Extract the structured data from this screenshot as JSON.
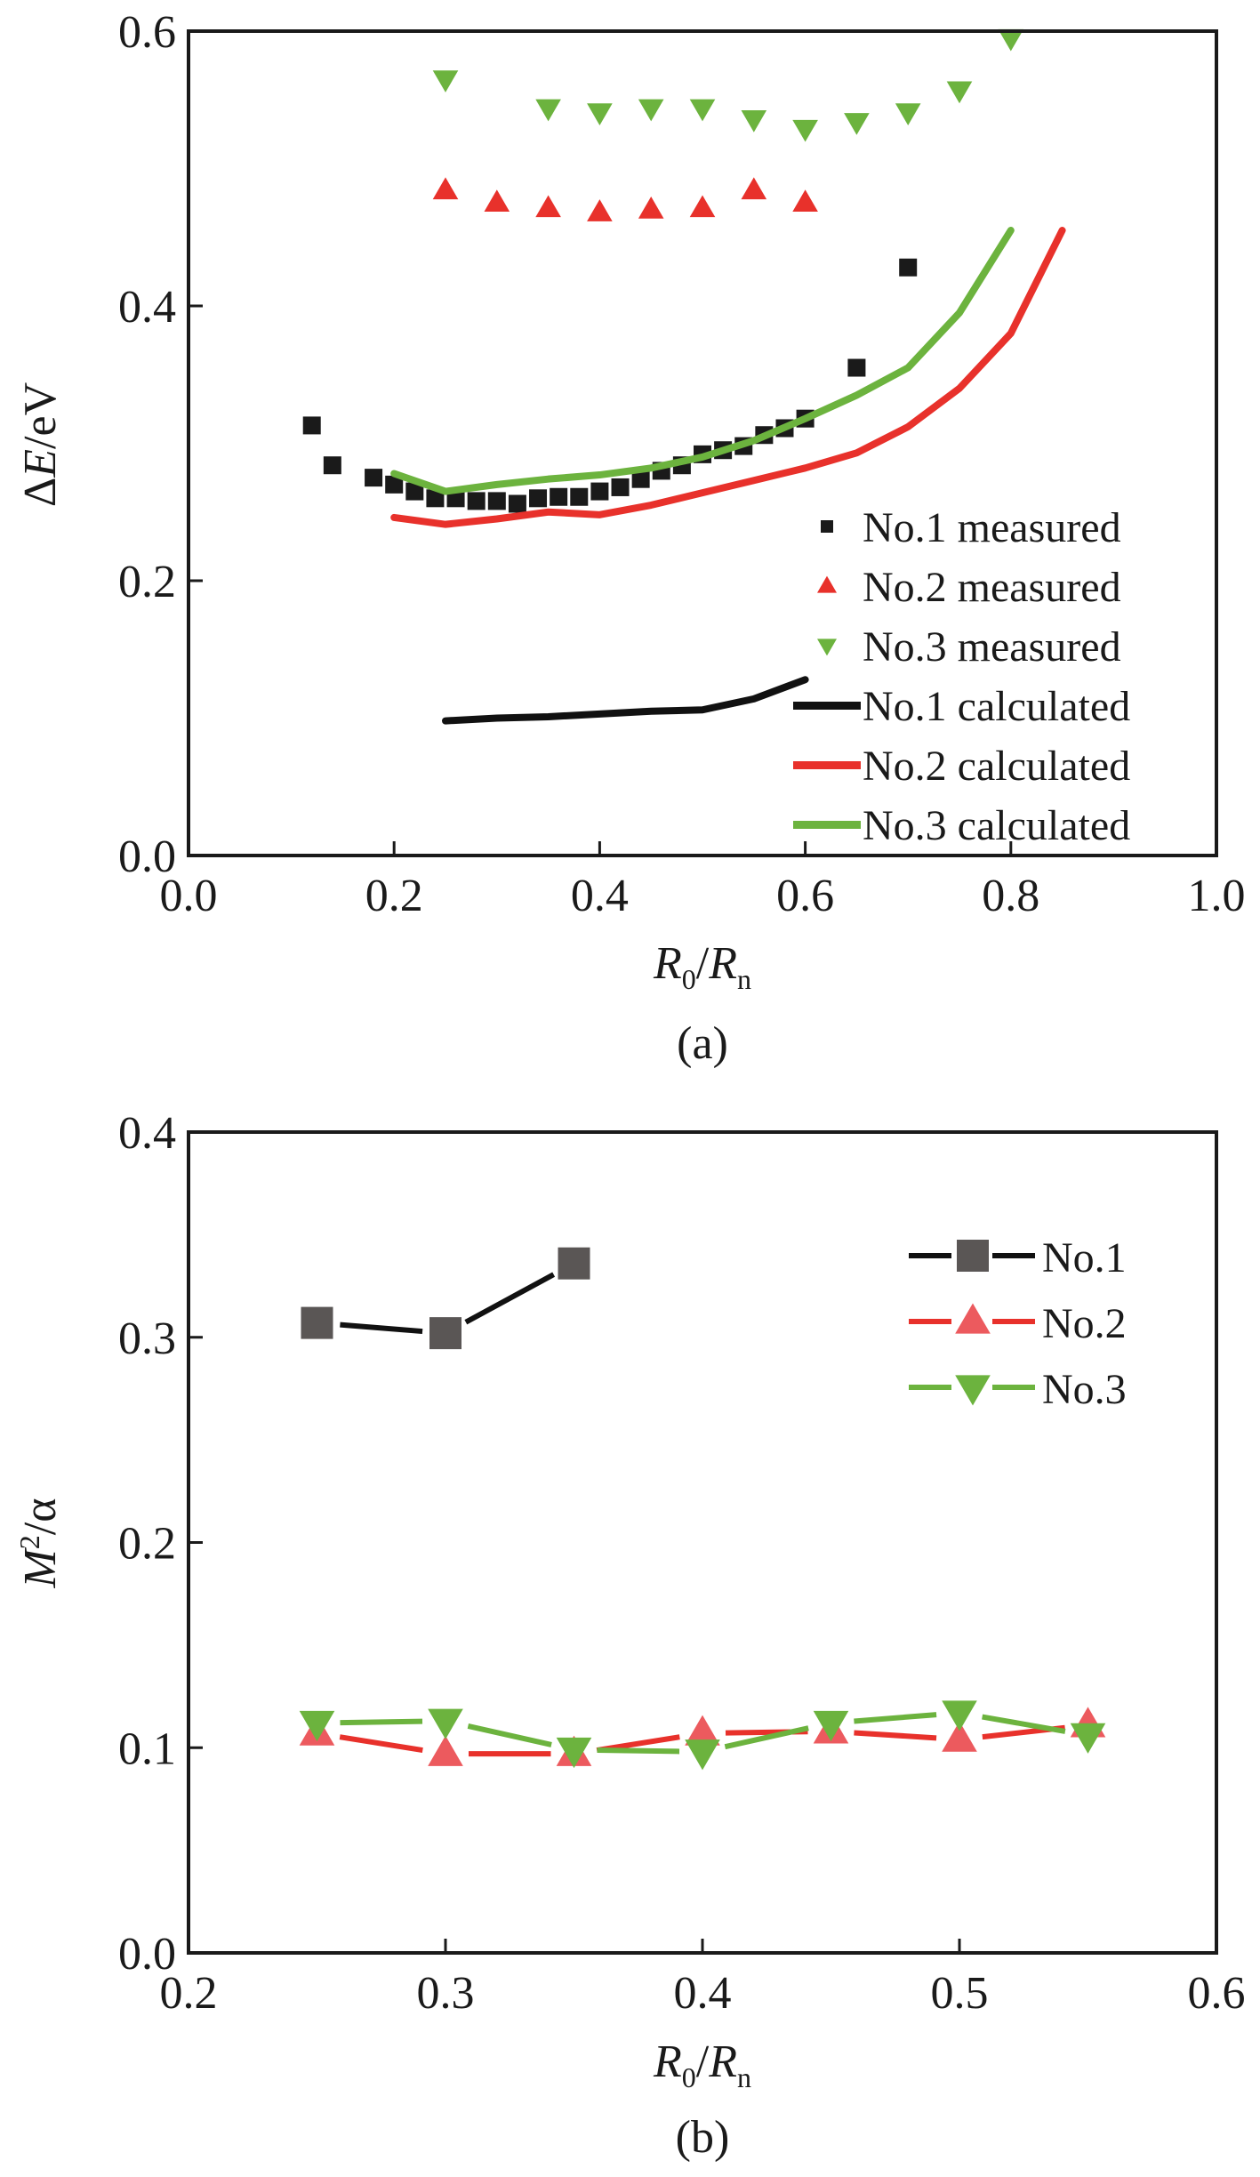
{
  "chart_data": [
    {
      "type": "scatter",
      "panel_label": "(a)",
      "xlabel": {
        "main": "R",
        "sub1": "0",
        "slash": "/",
        "main2": "R",
        "sub2": "n"
      },
      "ylabel": {
        "delta": "Δ",
        "var": "E",
        "unit": "/eV"
      },
      "xlim": [
        0.0,
        1.0
      ],
      "ylim": [
        0.0,
        0.6
      ],
      "xticks": [
        "0.0",
        "0.2",
        "0.4",
        "0.6",
        "0.8",
        "1.0"
      ],
      "yticks": [
        "0.0",
        "0.2",
        "0.4",
        "0.6"
      ],
      "grid": false,
      "legend_position": "bottom-right",
      "series": [
        {
          "name": "No.1 measured",
          "kind": "marker",
          "marker": "square",
          "color": "#1a1a1a",
          "x": [
            0.12,
            0.14,
            0.18,
            0.2,
            0.22,
            0.24,
            0.26,
            0.28,
            0.3,
            0.32,
            0.34,
            0.36,
            0.38,
            0.4,
            0.42,
            0.44,
            0.46,
            0.48,
            0.5,
            0.52,
            0.54,
            0.56,
            0.58,
            0.6,
            0.65,
            0.7
          ],
          "y": [
            0.313,
            0.284,
            0.275,
            0.27,
            0.265,
            0.26,
            0.26,
            0.258,
            0.258,
            0.256,
            0.26,
            0.261,
            0.261,
            0.265,
            0.268,
            0.274,
            0.28,
            0.284,
            0.292,
            0.295,
            0.298,
            0.306,
            0.311,
            0.318,
            0.355,
            0.428
          ]
        },
        {
          "name": "No.2 measured",
          "kind": "marker",
          "marker": "triangle-up",
          "color": "#e8312b",
          "x": [
            0.25,
            0.3,
            0.35,
            0.4,
            0.45,
            0.5,
            0.55,
            0.6
          ],
          "y": [
            0.484,
            0.475,
            0.471,
            0.468,
            0.47,
            0.471,
            0.484,
            0.475
          ]
        },
        {
          "name": "No.3 measured",
          "kind": "marker",
          "marker": "triangle-down",
          "color": "#6cb33e",
          "x": [
            0.25,
            0.35,
            0.4,
            0.45,
            0.5,
            0.55,
            0.6,
            0.65,
            0.7,
            0.75,
            0.8
          ],
          "y": [
            0.565,
            0.544,
            0.541,
            0.544,
            0.544,
            0.536,
            0.529,
            0.534,
            0.541,
            0.557,
            0.595
          ]
        },
        {
          "name": "No.1 calculated",
          "kind": "line",
          "color": "#111111",
          "x": [
            0.25,
            0.3,
            0.35,
            0.4,
            0.45,
            0.5,
            0.55,
            0.6
          ],
          "y": [
            0.098,
            0.1,
            0.101,
            0.103,
            0.105,
            0.106,
            0.114,
            0.128
          ]
        },
        {
          "name": "No.2 calculated",
          "kind": "line",
          "color": "#e8312b",
          "x": [
            0.2,
            0.25,
            0.3,
            0.35,
            0.4,
            0.45,
            0.5,
            0.55,
            0.6,
            0.65,
            0.7,
            0.75,
            0.8,
            0.85
          ],
          "y": [
            0.246,
            0.241,
            0.245,
            0.25,
            0.248,
            0.255,
            0.264,
            0.273,
            0.282,
            0.293,
            0.312,
            0.34,
            0.38,
            0.455
          ]
        },
        {
          "name": "No.3 calculated",
          "kind": "line",
          "color": "#6cb33e",
          "x": [
            0.2,
            0.25,
            0.3,
            0.35,
            0.4,
            0.45,
            0.5,
            0.55,
            0.6,
            0.65,
            0.7,
            0.75,
            0.8
          ],
          "y": [
            0.278,
            0.265,
            0.27,
            0.274,
            0.277,
            0.282,
            0.29,
            0.302,
            0.318,
            0.335,
            0.355,
            0.395,
            0.455
          ]
        }
      ]
    },
    {
      "type": "line",
      "panel_label": "(b)",
      "xlabel": {
        "main": "R",
        "sub1": "0",
        "slash": "/",
        "main2": "R",
        "sub2": "n"
      },
      "ylabel": {
        "var": "M",
        "sup": "2",
        "unit": "/α"
      },
      "xlim": [
        0.2,
        0.6
      ],
      "ylim": [
        0.0,
        0.4
      ],
      "xticks": [
        "0.2",
        "0.3",
        "0.4",
        "0.5",
        "0.6"
      ],
      "yticks": [
        "0.0",
        "0.1",
        "0.2",
        "0.3",
        "0.4"
      ],
      "grid": false,
      "legend_position": "top-right",
      "series": [
        {
          "name": "No.1",
          "marker": "square",
          "color": "#5a5655",
          "line_color": "#111111",
          "x": [
            0.25,
            0.3,
            0.35
          ],
          "y": [
            0.307,
            0.302,
            0.336
          ]
        },
        {
          "name": "No.2",
          "marker": "triangle-up",
          "color": "#ec5a5e",
          "line_color": "#e8312b",
          "x": [
            0.25,
            0.3,
            0.35,
            0.4,
            0.45,
            0.5,
            0.55
          ],
          "y": [
            0.107,
            0.097,
            0.097,
            0.107,
            0.108,
            0.104,
            0.111
          ]
        },
        {
          "name": "No.3",
          "marker": "triangle-down",
          "color": "#6cb33e",
          "line_color": "#6cb33e",
          "x": [
            0.25,
            0.3,
            0.35,
            0.4,
            0.45,
            0.5,
            0.55
          ],
          "y": [
            0.112,
            0.113,
            0.099,
            0.098,
            0.112,
            0.117,
            0.106
          ]
        }
      ]
    }
  ]
}
